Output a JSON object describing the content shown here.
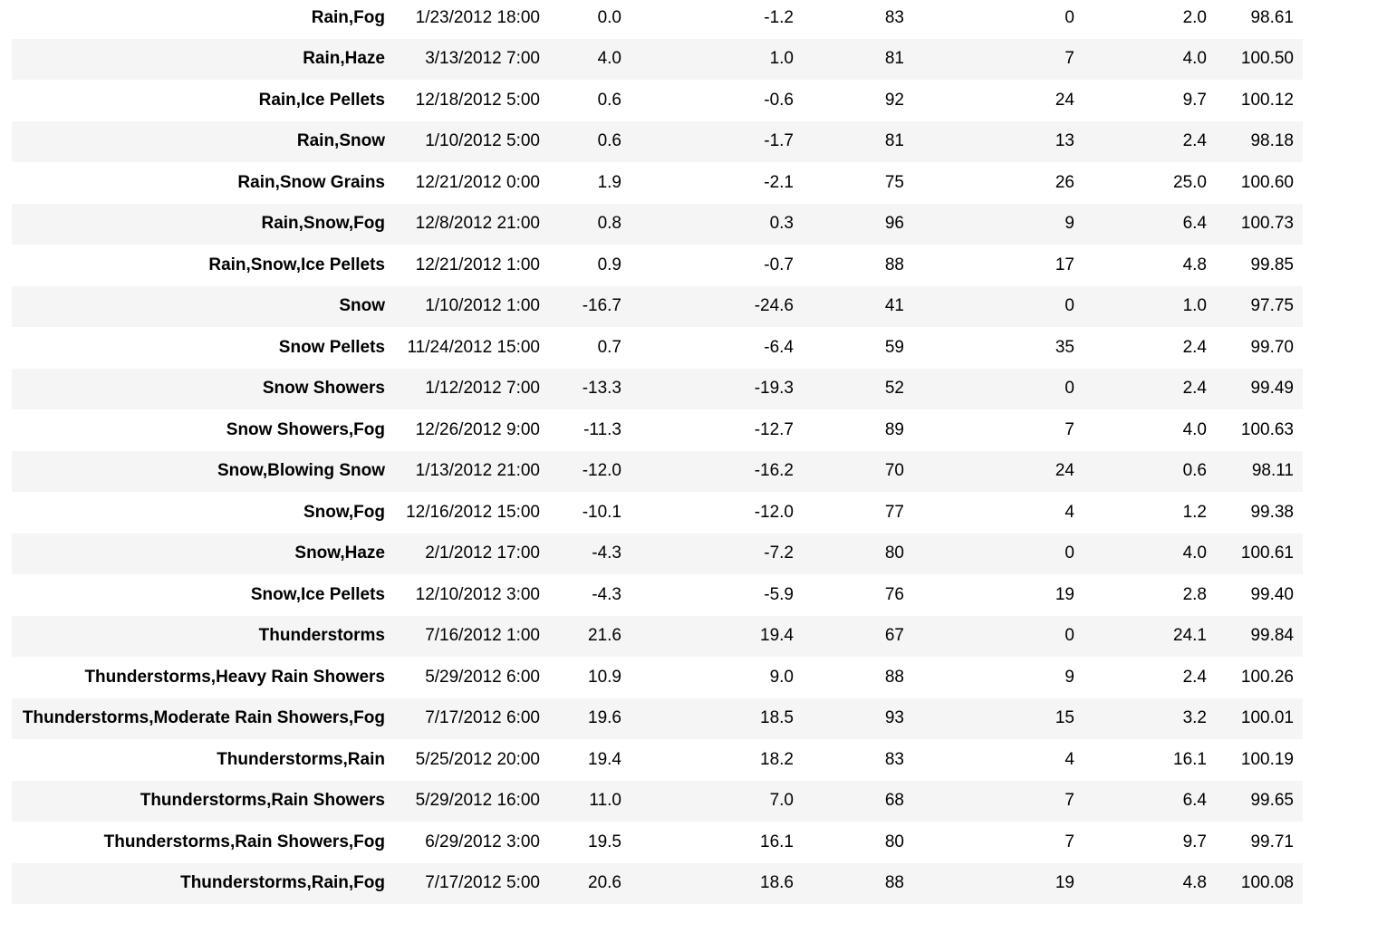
{
  "rows": [
    {
      "label": "Rain,Fog",
      "datetime": "1/23/2012 18:00",
      "temp": "0.0",
      "dew": "-1.2",
      "hum": "83",
      "wind": "0",
      "vis": "2.0",
      "press": "98.61"
    },
    {
      "label": "Rain,Haze",
      "datetime": "3/13/2012 7:00",
      "temp": "4.0",
      "dew": "1.0",
      "hum": "81",
      "wind": "7",
      "vis": "4.0",
      "press": "100.50"
    },
    {
      "label": "Rain,Ice Pellets",
      "datetime": "12/18/2012 5:00",
      "temp": "0.6",
      "dew": "-0.6",
      "hum": "92",
      "wind": "24",
      "vis": "9.7",
      "press": "100.12"
    },
    {
      "label": "Rain,Snow",
      "datetime": "1/10/2012 5:00",
      "temp": "0.6",
      "dew": "-1.7",
      "hum": "81",
      "wind": "13",
      "vis": "2.4",
      "press": "98.18"
    },
    {
      "label": "Rain,Snow Grains",
      "datetime": "12/21/2012 0:00",
      "temp": "1.9",
      "dew": "-2.1",
      "hum": "75",
      "wind": "26",
      "vis": "25.0",
      "press": "100.60"
    },
    {
      "label": "Rain,Snow,Fog",
      "datetime": "12/8/2012 21:00",
      "temp": "0.8",
      "dew": "0.3",
      "hum": "96",
      "wind": "9",
      "vis": "6.4",
      "press": "100.73"
    },
    {
      "label": "Rain,Snow,Ice Pellets",
      "datetime": "12/21/2012 1:00",
      "temp": "0.9",
      "dew": "-0.7",
      "hum": "88",
      "wind": "17",
      "vis": "4.8",
      "press": "99.85"
    },
    {
      "label": "Snow",
      "datetime": "1/10/2012 1:00",
      "temp": "-16.7",
      "dew": "-24.6",
      "hum": "41",
      "wind": "0",
      "vis": "1.0",
      "press": "97.75"
    },
    {
      "label": "Snow Pellets",
      "datetime": "11/24/2012 15:00",
      "temp": "0.7",
      "dew": "-6.4",
      "hum": "59",
      "wind": "35",
      "vis": "2.4",
      "press": "99.70"
    },
    {
      "label": "Snow Showers",
      "datetime": "1/12/2012 7:00",
      "temp": "-13.3",
      "dew": "-19.3",
      "hum": "52",
      "wind": "0",
      "vis": "2.4",
      "press": "99.49"
    },
    {
      "label": "Snow Showers,Fog",
      "datetime": "12/26/2012 9:00",
      "temp": "-11.3",
      "dew": "-12.7",
      "hum": "89",
      "wind": "7",
      "vis": "4.0",
      "press": "100.63"
    },
    {
      "label": "Snow,Blowing Snow",
      "datetime": "1/13/2012 21:00",
      "temp": "-12.0",
      "dew": "-16.2",
      "hum": "70",
      "wind": "24",
      "vis": "0.6",
      "press": "98.11"
    },
    {
      "label": "Snow,Fog",
      "datetime": "12/16/2012 15:00",
      "temp": "-10.1",
      "dew": "-12.0",
      "hum": "77",
      "wind": "4",
      "vis": "1.2",
      "press": "99.38"
    },
    {
      "label": "Snow,Haze",
      "datetime": "2/1/2012 17:00",
      "temp": "-4.3",
      "dew": "-7.2",
      "hum": "80",
      "wind": "0",
      "vis": "4.0",
      "press": "100.61"
    },
    {
      "label": "Snow,Ice Pellets",
      "datetime": "12/10/2012 3:00",
      "temp": "-4.3",
      "dew": "-5.9",
      "hum": "76",
      "wind": "19",
      "vis": "2.8",
      "press": "99.40"
    },
    {
      "label": "Thunderstorms",
      "datetime": "7/16/2012 1:00",
      "temp": "21.6",
      "dew": "19.4",
      "hum": "67",
      "wind": "0",
      "vis": "24.1",
      "press": "99.84"
    },
    {
      "label": "Thunderstorms,Heavy Rain Showers",
      "datetime": "5/29/2012 6:00",
      "temp": "10.9",
      "dew": "9.0",
      "hum": "88",
      "wind": "9",
      "vis": "2.4",
      "press": "100.26"
    },
    {
      "label": "Thunderstorms,Moderate Rain Showers,Fog",
      "datetime": "7/17/2012 6:00",
      "temp": "19.6",
      "dew": "18.5",
      "hum": "93",
      "wind": "15",
      "vis": "3.2",
      "press": "100.01"
    },
    {
      "label": "Thunderstorms,Rain",
      "datetime": "5/25/2012 20:00",
      "temp": "19.4",
      "dew": "18.2",
      "hum": "83",
      "wind": "4",
      "vis": "16.1",
      "press": "100.19"
    },
    {
      "label": "Thunderstorms,Rain Showers",
      "datetime": "5/29/2012 16:00",
      "temp": "11.0",
      "dew": "7.0",
      "hum": "68",
      "wind": "7",
      "vis": "6.4",
      "press": "99.65"
    },
    {
      "label": "Thunderstorms,Rain Showers,Fog",
      "datetime": "6/29/2012 3:00",
      "temp": "19.5",
      "dew": "16.1",
      "hum": "80",
      "wind": "7",
      "vis": "9.7",
      "press": "99.71"
    },
    {
      "label": "Thunderstorms,Rain,Fog",
      "datetime": "7/17/2012 5:00",
      "temp": "20.6",
      "dew": "18.6",
      "hum": "88",
      "wind": "19",
      "vis": "4.8",
      "press": "100.08"
    }
  ]
}
